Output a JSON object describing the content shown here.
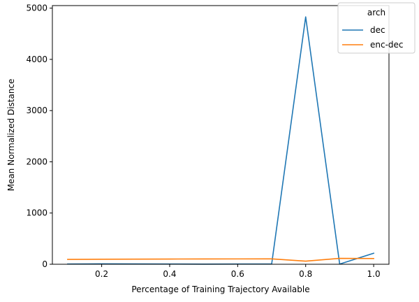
{
  "chart_data": {
    "type": "line",
    "title": "",
    "xlabel": "Percentage of Training Trajectory Available",
    "ylabel": "Mean Normalized Distance",
    "xlim": [
      0.055,
      1.045
    ],
    "ylim": [
      0,
      5050
    ],
    "x_ticks": [
      0.2,
      0.4,
      0.6,
      0.8,
      1.0
    ],
    "x_tick_labels": [
      "0.2",
      "0.4",
      "0.6",
      "0.8",
      "1.0"
    ],
    "y_ticks": [
      0,
      1000,
      2000,
      3000,
      4000,
      5000
    ],
    "y_tick_labels": [
      "0",
      "1000",
      "2000",
      "3000",
      "4000",
      "5000"
    ],
    "grid": false,
    "legend": {
      "title": "arch",
      "placement": "top-right"
    },
    "x": [
      0.1,
      0.2,
      0.3,
      0.4,
      0.5,
      0.6,
      0.7,
      0.8,
      0.9,
      1.0
    ],
    "series": [
      {
        "name": "dec",
        "color": "#1f77b4",
        "values": [
          5,
          8,
          6,
          4,
          3,
          4,
          5,
          4830,
          3,
          215
        ]
      },
      {
        "name": "enc-dec",
        "color": "#ff7f0e",
        "values": [
          95,
          98,
          100,
          102,
          103,
          104,
          105,
          60,
          115,
          112
        ]
      }
    ]
  }
}
